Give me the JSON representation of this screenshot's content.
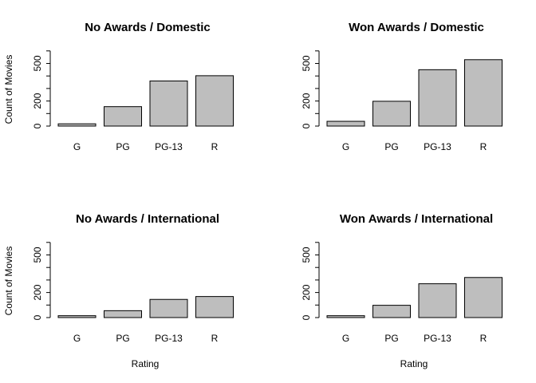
{
  "chart_data": [
    {
      "type": "bar",
      "title": "No Awards / Domestic",
      "categories": [
        "G",
        "PG",
        "PG-13",
        "R"
      ],
      "values": [
        18,
        155,
        360,
        402
      ],
      "ylabel": "Count of Movies",
      "xlabel": "",
      "ylim": [
        0,
        600
      ],
      "yticks": [
        0,
        200,
        500
      ],
      "grid": false,
      "bar_color": "#bebebe"
    },
    {
      "type": "bar",
      "title": "Won Awards / Domestic",
      "categories": [
        "G",
        "PG",
        "PG-13",
        "R"
      ],
      "values": [
        38,
        198,
        450,
        530
      ],
      "ylabel": "",
      "xlabel": "",
      "ylim": [
        0,
        600
      ],
      "yticks": [
        0,
        200,
        500
      ],
      "grid": false,
      "bar_color": "#bebebe"
    },
    {
      "type": "bar",
      "title": "No Awards / International",
      "categories": [
        "G",
        "PG",
        "PG-13",
        "R"
      ],
      "values": [
        15,
        55,
        145,
        168
      ],
      "ylabel": "Count of Movies",
      "xlabel": "Rating",
      "ylim": [
        0,
        600
      ],
      "yticks": [
        0,
        200,
        500
      ],
      "grid": false,
      "bar_color": "#bebebe"
    },
    {
      "type": "bar",
      "title": "Won Awards / International",
      "categories": [
        "G",
        "PG",
        "PG-13",
        "R"
      ],
      "values": [
        15,
        98,
        270,
        320
      ],
      "ylabel": "",
      "xlabel": "Rating",
      "ylim": [
        0,
        600
      ],
      "yticks": [
        0,
        200,
        500
      ],
      "grid": false,
      "bar_color": "#bebebe"
    }
  ]
}
